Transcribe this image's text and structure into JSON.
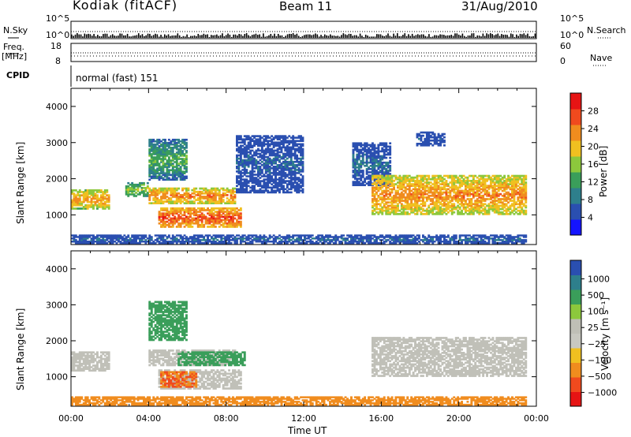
{
  "header": {
    "station": "Kodiak (fitACF)",
    "beam": "Beam 11",
    "date": "31/Aug/2010"
  },
  "top_panel": {
    "nsky_label": "N.Sky",
    "nsearch_label": "N.Search",
    "freq_label_line1": "Freq.",
    "freq_label_line2": "[MHz]",
    "nave_label": "Nave",
    "cpid_label": "CPID",
    "cpid_value": "normal (fast) 151",
    "noise_left_ticks": [
      "10^5",
      "10^0"
    ],
    "noise_right_ticks": [
      "10^5",
      "10^0"
    ],
    "freq_ticks": [
      "18",
      "8"
    ],
    "nave_ticks": [
      "60",
      "0"
    ]
  },
  "colors": {
    "power_scale": [
      "#1414ff",
      "#2a4fb0",
      "#2e7f8c",
      "#3a9e5a",
      "#8cc83c",
      "#f0c020",
      "#f08c1e",
      "#f04a1e",
      "#e61414"
    ],
    "velocity_scale": [
      "#e61414",
      "#f04a1e",
      "#f08c1e",
      "#f0c020",
      "#c8c8c0",
      "#bfbfb6",
      "#8cc83c",
      "#3a9e5a",
      "#2e7f8c",
      "#2a4fb0"
    ],
    "ground_scatter": "#c0c0b8"
  },
  "chart_data": [
    {
      "type": "heatmap",
      "name": "power",
      "xlabel": "Time UT",
      "ylabel": "Slant Range [km]",
      "xlim": [
        0,
        24
      ],
      "ylim": [
        180,
        4500
      ],
      "y_ticks": [
        "1000",
        "2000",
        "3000",
        "4000"
      ],
      "colorbar": {
        "label": "Power [dB]",
        "ticks": [
          "4",
          "8",
          "12",
          "16",
          "20",
          "24",
          "28"
        ],
        "range": [
          0,
          32
        ]
      },
      "echo_regions": [
        {
          "t_start": 0.0,
          "t_end": 2.0,
          "r_low": 1150,
          "r_high": 1700,
          "power_db": 24
        },
        {
          "t_start": 2.8,
          "t_end": 4.0,
          "r_low": 1500,
          "r_high": 1900,
          "power_db": 18
        },
        {
          "t_start": 4.0,
          "t_end": 8.5,
          "r_low": 1300,
          "r_high": 1750,
          "power_db": 26
        },
        {
          "t_start": 4.5,
          "t_end": 8.8,
          "r_low": 650,
          "r_high": 1200,
          "power_db": 29
        },
        {
          "t_start": 4.0,
          "t_end": 6.0,
          "r_low": 1950,
          "r_high": 3100,
          "power_db": 14
        },
        {
          "t_start": 8.5,
          "t_end": 12.0,
          "r_low": 1600,
          "r_high": 3200,
          "power_db": 6
        },
        {
          "t_start": 14.5,
          "t_end": 16.5,
          "r_low": 1800,
          "r_high": 3000,
          "power_db": 8
        },
        {
          "t_start": 15.5,
          "t_end": 23.5,
          "r_low": 1000,
          "r_high": 2100,
          "power_db": 25
        },
        {
          "t_start": 17.8,
          "t_end": 19.3,
          "r_low": 2900,
          "r_high": 3300,
          "power_db": 5
        },
        {
          "t_start": 0.0,
          "t_end": 23.5,
          "r_low": 200,
          "r_high": 450,
          "power_db": 8
        }
      ]
    },
    {
      "type": "heatmap",
      "name": "velocity",
      "xlabel": "Time UT",
      "ylabel": "Slant Range [km]",
      "xlim": [
        0,
        24
      ],
      "ylim": [
        180,
        4500
      ],
      "x_ticks": [
        "00:00",
        "04:00",
        "08:00",
        "12:00",
        "16:00",
        "20:00",
        "00:00"
      ],
      "y_ticks": [
        "1000",
        "2000",
        "3000",
        "4000"
      ],
      "colorbar": {
        "label": "Velocity [m s⁻¹]",
        "ticks": [
          "1000",
          "500",
          "100",
          "25",
          "−25",
          "−100",
          "−500",
          "−1000"
        ]
      },
      "echo_regions": [
        {
          "t_start": 0.0,
          "t_end": 2.0,
          "r_low": 1150,
          "r_high": 1700,
          "velocity": 0,
          "ground_scatter": true
        },
        {
          "t_start": 4.0,
          "t_end": 8.5,
          "r_low": 1300,
          "r_high": 1750,
          "velocity": 0,
          "ground_scatter": true
        },
        {
          "t_start": 4.5,
          "t_end": 8.8,
          "r_low": 650,
          "r_high": 1200,
          "velocity": 0,
          "ground_scatter": true
        },
        {
          "t_start": 4.6,
          "t_end": 6.5,
          "r_low": 700,
          "r_high": 1150,
          "velocity": -100
        },
        {
          "t_start": 4.0,
          "t_end": 6.0,
          "r_low": 2000,
          "r_high": 3100,
          "velocity": 200
        },
        {
          "t_start": 5.5,
          "t_end": 9.0,
          "r_low": 1300,
          "r_high": 1700,
          "velocity": 300
        },
        {
          "t_start": 15.5,
          "t_end": 23.5,
          "r_low": 1000,
          "r_high": 2100,
          "velocity": 0,
          "ground_scatter": true
        },
        {
          "t_start": 0.0,
          "t_end": 23.5,
          "r_low": 200,
          "r_high": 450,
          "velocity": -60
        }
      ]
    }
  ]
}
